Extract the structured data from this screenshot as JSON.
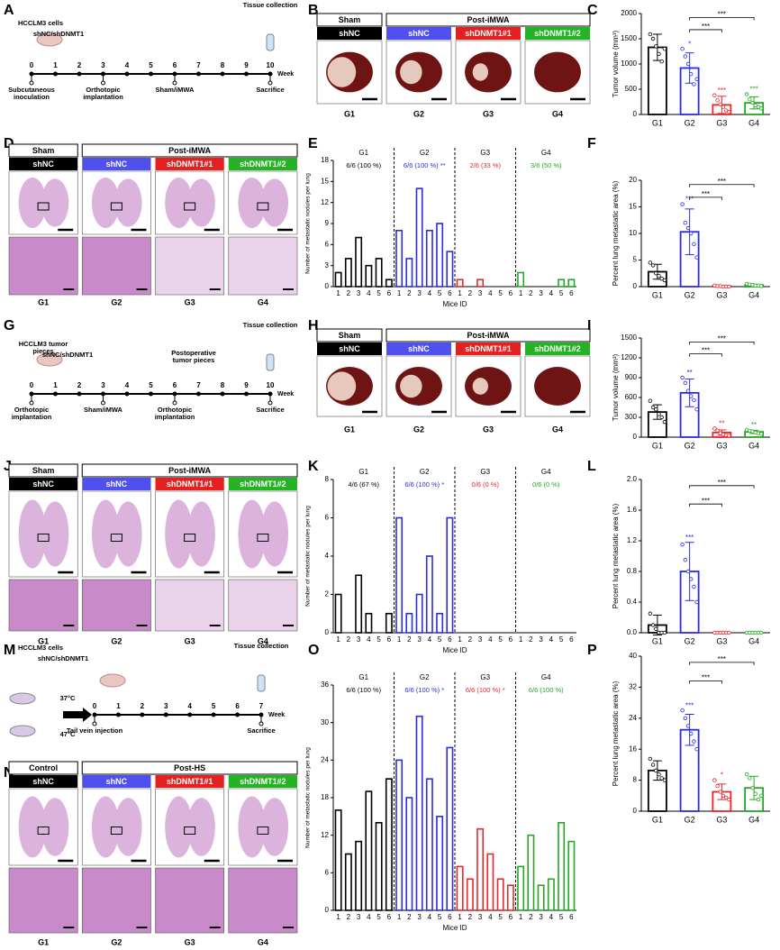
{
  "timelines": [
    {
      "letter": "A",
      "notes": [
        "HCCLM3 cells",
        "shNC/shDNMT1",
        "Tissue collection"
      ],
      "weeks": [
        0,
        1,
        2,
        3,
        4,
        5,
        6,
        7,
        8,
        9,
        10
      ],
      "unit": "Week",
      "events": [
        "Subcutaneous inoculation",
        "Orthotopic implantation",
        "Sham/iMWA",
        "Sacrifice"
      ]
    },
    {
      "letter": "G",
      "notes": [
        "HCCLM3 tumor pieces",
        "shNC/shDNMT1",
        "Postoperative tumor pieces",
        "Tissue collection"
      ],
      "weeks": [
        0,
        1,
        2,
        3,
        4,
        5,
        6,
        7,
        8,
        9,
        10
      ],
      "unit": "Week",
      "events": [
        "Orthotopic implantation",
        "Sham/iMWA",
        "Orthotopic implantation",
        "Sacrifice"
      ]
    },
    {
      "letter": "M",
      "notes": [
        "HCCLM3 cells",
        "shNC/shDNMT1",
        "Tissue collection",
        "37°C",
        "47°C"
      ],
      "weeks": [
        0,
        1,
        2,
        3,
        4,
        5,
        6,
        7
      ],
      "unit": "Week",
      "events": [
        "Tail vein injection",
        "Sacrifice"
      ]
    }
  ],
  "image_panels": [
    {
      "letter": "B",
      "left_header": "Sham",
      "right_header": "Post-iMWA",
      "labels": [
        "shNC",
        "shNC",
        "shDNMT1#1",
        "shDNMT1#2"
      ],
      "label_colors": [
        "#000000",
        "#5050ee",
        "#e52020",
        "#23b323"
      ],
      "groups": [
        "G1",
        "G2",
        "G3",
        "G4"
      ]
    },
    {
      "letter": "D",
      "left_header": "Sham",
      "right_header": "Post-iMWA",
      "labels": [
        "shNC",
        "shNC",
        "shDNMT1#1",
        "shDNMT1#2"
      ],
      "label_colors": [
        "#000000",
        "#5050ee",
        "#e52020",
        "#23b323"
      ],
      "groups": [
        "G1",
        "G2",
        "G3",
        "G4"
      ]
    },
    {
      "letter": "H",
      "left_header": "Sham",
      "right_header": "Post-iMWA",
      "labels": [
        "shNC",
        "shNC",
        "shDNMT1#1",
        "shDNMT1#2"
      ],
      "label_colors": [
        "#000000",
        "#5050ee",
        "#e52020",
        "#23b323"
      ],
      "groups": [
        "G1",
        "G2",
        "G3",
        "G4"
      ]
    },
    {
      "letter": "J",
      "left_header": "Sham",
      "right_header": "Post-iMWA",
      "labels": [
        "shNC",
        "shNC",
        "shDNMT1#1",
        "shDNMT1#2"
      ],
      "label_colors": [
        "#000000",
        "#5050ee",
        "#e52020",
        "#23b323"
      ],
      "groups": [
        "G1",
        "G2",
        "G3",
        "G4"
      ]
    },
    {
      "letter": "N",
      "left_header": "Control",
      "right_header": "Post-HS",
      "labels": [
        "shNC",
        "shNC",
        "shDNMT1#1",
        "shDNMT1#2"
      ],
      "label_colors": [
        "#000000",
        "#5050ee",
        "#e52020",
        "#23b323"
      ],
      "groups": [
        "G1",
        "G2",
        "G3",
        "G4"
      ]
    }
  ],
  "chart_data": [
    {
      "letter": "C",
      "type": "bar",
      "y_label": "Tumor volume (mm³)",
      "categories": [
        "G1",
        "G2",
        "G3",
        "G4"
      ],
      "colors": [
        "#000000",
        "#2a2ae8",
        "#e8262a",
        "#22a822"
      ],
      "values": [
        1330,
        920,
        190,
        230
      ],
      "errors": [
        260,
        300,
        170,
        120
      ],
      "points": [
        [
          1590,
          1500,
          1350,
          1200,
          1050,
          1300
        ],
        [
          1300,
          1150,
          1000,
          800,
          600,
          700
        ],
        [
          380,
          280,
          200,
          150,
          80,
          50
        ],
        [
          400,
          300,
          230,
          180,
          150,
          120
        ]
      ],
      "significance": [
        null,
        "*",
        "***",
        "***"
      ],
      "bracket_labels": [
        "***",
        "***"
      ],
      "ylim": [
        0,
        2000
      ],
      "yticks": [
        0,
        500,
        1000,
        1500,
        2000
      ]
    },
    {
      "letter": "E",
      "type": "grouped_bar",
      "y_label": "Number of metastatic nodules per lung",
      "x_label": "Mice ID",
      "mice_ids": [
        1,
        2,
        3,
        4,
        5,
        6
      ],
      "groups": [
        {
          "name": "G1",
          "color": "#000000",
          "incidence": "6/6 (100 %)",
          "values": [
            2,
            4,
            7,
            3,
            4,
            1
          ]
        },
        {
          "name": "G2",
          "color": "#2a2ae8",
          "incidence": "6/6 (100 %) **",
          "values": [
            8,
            4,
            14,
            8,
            9,
            5
          ]
        },
        {
          "name": "G3",
          "color": "#e8262a",
          "incidence": "2/6 (33 %)",
          "values": [
            1,
            0,
            1,
            0,
            0,
            0
          ]
        },
        {
          "name": "G4",
          "color": "#22a822",
          "incidence": "3/6 (50 %)",
          "values": [
            2,
            0,
            0,
            0,
            1,
            1
          ]
        }
      ],
      "ylim": [
        0,
        18
      ],
      "yticks": [
        0,
        3,
        6,
        9,
        12,
        15,
        18
      ]
    },
    {
      "letter": "F",
      "type": "bar",
      "y_label": "Percent lung metastatic area (%)",
      "categories": [
        "G1",
        "G2",
        "G3",
        "G4"
      ],
      "colors": [
        "#000000",
        "#2a2ae8",
        "#e8262a",
        "#22a822"
      ],
      "values": [
        2.8,
        10.3,
        0.1,
        0.3
      ],
      "errors": [
        1.4,
        4.3,
        0.1,
        0.15
      ],
      "points": [
        [
          4.5,
          4,
          2.5,
          2,
          1.5,
          1.2
        ],
        [
          15.5,
          12,
          11,
          10,
          8,
          5.5
        ],
        [
          0.2,
          0.1,
          0.1,
          0,
          0,
          0
        ],
        [
          0.5,
          0.4,
          0.3,
          0.2,
          0.2,
          0.1
        ]
      ],
      "significance": [
        null,
        "***",
        null,
        null
      ],
      "bracket_labels": [
        "***",
        "***"
      ],
      "ylim": [
        0,
        20
      ],
      "yticks": [
        0,
        5,
        10,
        15,
        20
      ]
    },
    {
      "letter": "I",
      "type": "bar",
      "y_label": "Tumor volume (mm³)",
      "categories": [
        "G1",
        "G2",
        "G3",
        "G4"
      ],
      "colors": [
        "#000000",
        "#2a2ae8",
        "#e8262a",
        "#22a822"
      ],
      "values": [
        380,
        670,
        70,
        80
      ],
      "errors": [
        110,
        210,
        40,
        25
      ],
      "points": [
        [
          550,
          450,
          420,
          350,
          300,
          230
        ],
        [
          900,
          820,
          700,
          620,
          560,
          420
        ],
        [
          130,
          100,
          60,
          40,
          30,
          20
        ],
        [
          110,
          95,
          85,
          70,
          60,
          50
        ]
      ],
      "significance": [
        null,
        "**",
        "**",
        "**"
      ],
      "bracket_labels": [
        "***",
        "***"
      ],
      "ylim": [
        0,
        1500
      ],
      "yticks": [
        0,
        300,
        600,
        900,
        1200,
        1500
      ]
    },
    {
      "letter": "K",
      "type": "grouped_bar",
      "y_label": "Number of metastatic nodules per lung",
      "x_label": "Mice ID",
      "mice_ids": [
        1,
        2,
        3,
        4,
        5,
        6
      ],
      "groups": [
        {
          "name": "G1",
          "color": "#000000",
          "incidence": "4/6 (67 %)",
          "values": [
            2,
            0,
            3,
            1,
            0,
            1
          ]
        },
        {
          "name": "G2",
          "color": "#2a2ae8",
          "incidence": "6/6 (100 %) *",
          "values": [
            6,
            1,
            2,
            4,
            1,
            6
          ]
        },
        {
          "name": "G3",
          "color": "#e8262a",
          "incidence": "0/6 (0 %)",
          "values": [
            0,
            0,
            0,
            0,
            0,
            0
          ]
        },
        {
          "name": "G4",
          "color": "#22a822",
          "incidence": "0/6 (0 %)",
          "values": [
            0,
            0,
            0,
            0,
            0,
            0
          ]
        }
      ],
      "ylim": [
        0,
        8
      ],
      "yticks": [
        0,
        2,
        4,
        6,
        8
      ]
    },
    {
      "letter": "L",
      "type": "bar",
      "y_label": "Percent lung metastatic area (%)",
      "categories": [
        "G1",
        "G2",
        "G3",
        "G4"
      ],
      "colors": [
        "#000000",
        "#2a2ae8",
        "#e8262a",
        "#22a822"
      ],
      "values": [
        0.1,
        0.8,
        0,
        0
      ],
      "errors": [
        0.13,
        0.38,
        0,
        0
      ],
      "points": [
        [
          0.25,
          0.1,
          0.05,
          0,
          0,
          0
        ],
        [
          1.15,
          0.95,
          0.8,
          0.7,
          0.6,
          0.4
        ],
        [
          0,
          0,
          0,
          0,
          0,
          0
        ],
        [
          0,
          0,
          0,
          0,
          0,
          0
        ]
      ],
      "significance": [
        null,
        "***",
        null,
        null
      ],
      "bracket_labels": [
        "***",
        "***"
      ],
      "ylim": [
        0,
        2
      ],
      "yticks": [
        {
          "value": 0,
          "label": "0.0"
        },
        0.4,
        0.8,
        1.2,
        1.6,
        {
          "value": 2,
          "label": "2.0"
        }
      ]
    },
    {
      "letter": "O",
      "type": "grouped_bar",
      "y_label": "Number of metastatic nodules per lung",
      "x_label": "Mice ID",
      "mice_ids": [
        1,
        2,
        3,
        4,
        5,
        6
      ],
      "groups": [
        {
          "name": "G1",
          "color": "#000000",
          "incidence": "6/6 (100 %)",
          "values": [
            16,
            9,
            11,
            19,
            14,
            21
          ]
        },
        {
          "name": "G2",
          "color": "#2a2ae8",
          "incidence": "6/6 (100 %) *",
          "values": [
            24,
            18,
            31,
            21,
            15,
            26
          ]
        },
        {
          "name": "G3",
          "color": "#e8262a",
          "incidence": "6/6 (100 %) *",
          "values": [
            7,
            5,
            13,
            9,
            5,
            4
          ]
        },
        {
          "name": "G4",
          "color": "#22a822",
          "incidence": "6/6 (100 %)",
          "values": [
            7,
            12,
            4,
            5,
            14,
            11
          ]
        }
      ],
      "ylim": [
        0,
        36
      ],
      "yticks": [
        0,
        6,
        12,
        18,
        24,
        30,
        36
      ]
    },
    {
      "letter": "P",
      "type": "bar",
      "y_label": "Percent lung metastatic area (%)",
      "categories": [
        "G1",
        "G2",
        "G3",
        "G4"
      ],
      "colors": [
        "#000000",
        "#2a2ae8",
        "#e8262a",
        "#22a822"
      ],
      "values": [
        10.5,
        21,
        5,
        6
      ],
      "errors": [
        2.5,
        4,
        2,
        3
      ],
      "points": [
        [
          13.5,
          12,
          10.5,
          9.5,
          8.5,
          8
        ],
        [
          26,
          24,
          22,
          20,
          18,
          16
        ],
        [
          8,
          6.5,
          5,
          4,
          3.5,
          3
        ],
        [
          9.5,
          8.5,
          6,
          4.5,
          3,
          4
        ]
      ],
      "significance": [
        null,
        "***",
        "*",
        null
      ],
      "bracket_labels": [
        "***",
        "***"
      ],
      "ylim": [
        0,
        40
      ],
      "yticks": [
        0,
        8,
        16,
        24,
        32,
        40
      ]
    }
  ]
}
